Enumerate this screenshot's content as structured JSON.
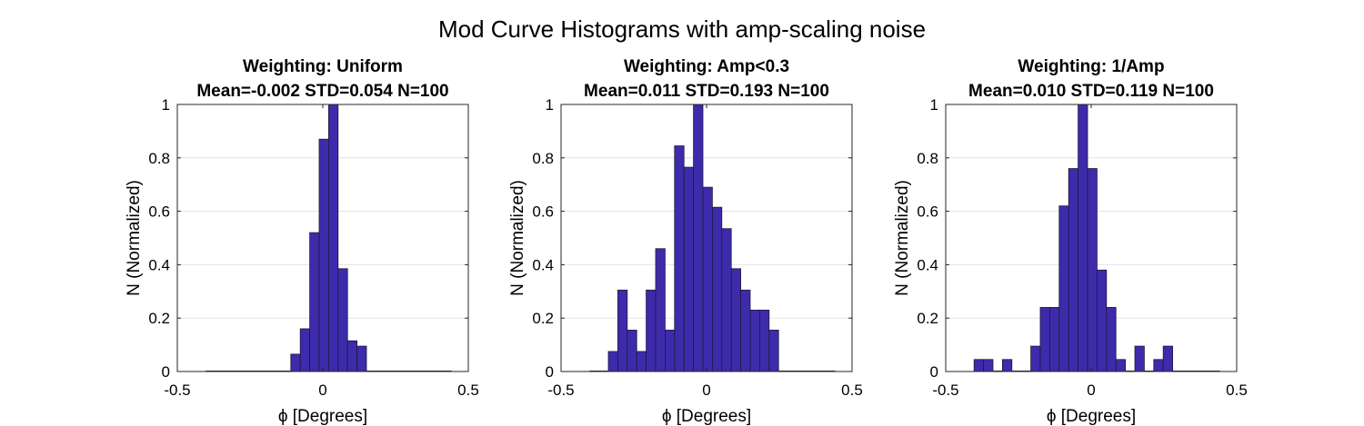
{
  "figure": {
    "title": "Mod Curve Histograms with amp-scaling noise"
  },
  "colors": {
    "bar_fill": "#3d2bab",
    "bar_edge": "#1e1a3a",
    "grid": "#e3e3e3",
    "axis": "#262626"
  },
  "chart_data": [
    {
      "type": "bar",
      "title": "Weighting: Uniform",
      "subtitle": "Mean=-0.002 STD=0.054 N=100",
      "xlabel": "ϕ [Degrees]",
      "ylabel": "N (Normalized)",
      "xlim": [
        -0.5,
        0.5
      ],
      "ylim": [
        0,
        1
      ],
      "xticks": [
        "-0.5",
        "0",
        "0.5"
      ],
      "yticks": [
        "0",
        "0.2",
        "0.4",
        "0.6",
        "0.8",
        "1"
      ],
      "grid": "horizontal",
      "bin_width": 0.0325,
      "bin_starts": [
        -0.4025,
        -0.37,
        -0.3375,
        -0.305,
        -0.2725,
        -0.24,
        -0.2075,
        -0.175,
        -0.1425,
        -0.11,
        -0.0775,
        -0.045,
        -0.0125,
        0.02,
        0.0525,
        0.085,
        0.1175,
        0.15,
        0.1825,
        0.215,
        0.2475,
        0.28,
        0.3125,
        0.345,
        0.3775,
        0.41
      ],
      "values": [
        0,
        0,
        0,
        0,
        0,
        0,
        0,
        0,
        0,
        0.065,
        0.16,
        0.52,
        0.87,
        1.0,
        0.385,
        0.115,
        0.095,
        0,
        0,
        0,
        0,
        0,
        0,
        0,
        0,
        0
      ]
    },
    {
      "type": "bar",
      "title": "Weighting: Amp<0.3",
      "subtitle": "Mean=0.011 STD=0.193 N=100",
      "xlabel": "ϕ [Degrees]",
      "ylabel": "N (Normalized)",
      "xlim": [
        -0.5,
        0.5
      ],
      "ylim": [
        0,
        1
      ],
      "xticks": [
        "-0.5",
        "0",
        "0.5"
      ],
      "yticks": [
        "0",
        "0.2",
        "0.4",
        "0.6",
        "0.8",
        "1"
      ],
      "grid": "horizontal",
      "bin_width": 0.0325,
      "bin_starts": [
        -0.4025,
        -0.37,
        -0.3375,
        -0.305,
        -0.2725,
        -0.24,
        -0.2075,
        -0.175,
        -0.1425,
        -0.11,
        -0.0775,
        -0.045,
        -0.0125,
        0.02,
        0.0525,
        0.085,
        0.1175,
        0.15,
        0.1825,
        0.215,
        0.2475,
        0.28,
        0.3125,
        0.345,
        0.3775,
        0.41
      ],
      "values": [
        0,
        0,
        0.075,
        0.305,
        0.155,
        0.075,
        0.305,
        0.46,
        0.155,
        0.845,
        0.765,
        1.0,
        0.69,
        0.615,
        0.535,
        0.385,
        0.305,
        0.23,
        0.23,
        0.155,
        0,
        0,
        0,
        0,
        0,
        0
      ]
    },
    {
      "type": "bar",
      "title": "Weighting: 1/Amp",
      "subtitle": "Mean=0.010 STD=0.119 N=100",
      "xlabel": "ϕ [Degrees]",
      "ylabel": "N (Normalized)",
      "xlim": [
        -0.5,
        0.5
      ],
      "ylim": [
        0,
        1
      ],
      "xticks": [
        "-0.5",
        "0",
        "0.5"
      ],
      "yticks": [
        "0",
        "0.2",
        "0.4",
        "0.6",
        "0.8",
        "1"
      ],
      "grid": "horizontal",
      "bin_width": 0.0325,
      "bin_starts": [
        -0.4025,
        -0.37,
        -0.3375,
        -0.305,
        -0.2725,
        -0.24,
        -0.2075,
        -0.175,
        -0.1425,
        -0.11,
        -0.0775,
        -0.045,
        -0.0125,
        0.02,
        0.0525,
        0.085,
        0.1175,
        0.15,
        0.1825,
        0.215,
        0.2475,
        0.28,
        0.3125,
        0.345,
        0.3775,
        0.41
      ],
      "values": [
        0.045,
        0.045,
        0,
        0.045,
        0,
        0,
        0.095,
        0.24,
        0.24,
        0.62,
        0.76,
        1.0,
        0.76,
        0.38,
        0.24,
        0.045,
        0,
        0.095,
        0,
        0.045,
        0.095,
        0,
        0,
        0,
        0,
        0
      ]
    }
  ]
}
